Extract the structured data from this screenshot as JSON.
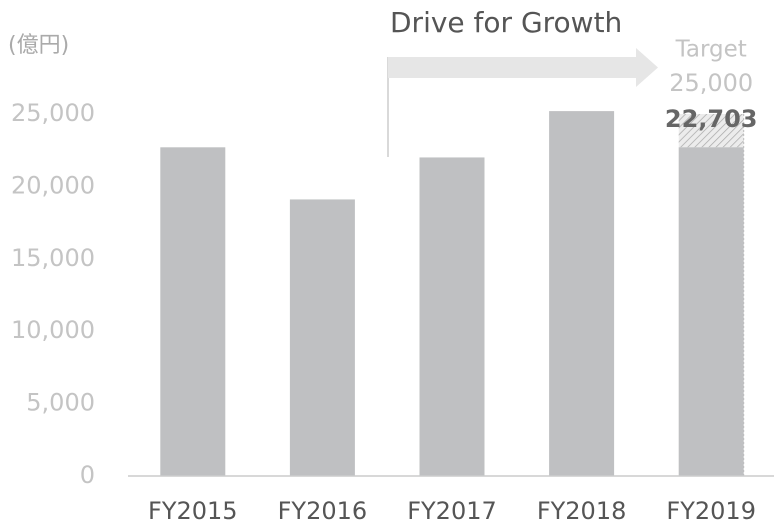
{
  "chart_data": {
    "type": "bar",
    "unit_label": "(億円)",
    "annotation": "Drive for Growth",
    "categories": [
      "FY2015",
      "FY2016",
      "FY2017",
      "FY2018",
      "FY2019"
    ],
    "values": [
      22700,
      19100,
      22000,
      25200,
      22703
    ],
    "value_labels": [
      null,
      null,
      null,
      null,
      "22,703"
    ],
    "color": "#bfc0c2",
    "target_label": "Target",
    "target": 25000,
    "target_value_label": "25,000",
    "ylim": [
      0,
      25000
    ],
    "yticks": [
      0,
      {
        "value": 5000,
        "label": "5,000"
      },
      {
        "value": 10000,
        "label": "10,000"
      },
      {
        "value": 15000,
        "label": "15,000"
      },
      {
        "value": 20000,
        "label": "20,000"
      },
      {
        "value": 25000,
        "label": "25,000"
      }
    ],
    "grid": false
  }
}
